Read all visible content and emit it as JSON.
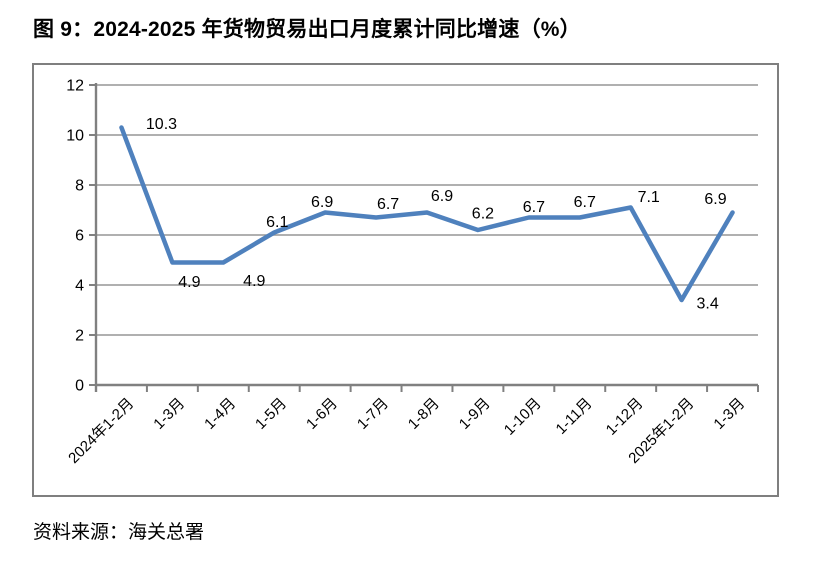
{
  "title": "图 9：2024-2025 年货物贸易出口月度累计同比增速（%）",
  "source": "资料来源：海关总署",
  "chart_data": {
    "type": "line",
    "title": "图 9：2024-2025 年货物贸易出口月度累计同比增速（%）",
    "categories": [
      "2024年1-2月",
      "1-3月",
      "1-4月",
      "1-5月",
      "1-6月",
      "1-7月",
      "1-8月",
      "1-9月",
      "1-10月",
      "1-11月",
      "1-12月",
      "2025年1-2月",
      "1-3月"
    ],
    "values": [
      10.3,
      4.9,
      4.9,
      6.1,
      6.9,
      6.7,
      6.9,
      6.2,
      6.7,
      6.7,
      7.1,
      3.4,
      6.9
    ],
    "xlabel": "",
    "ylabel": "",
    "ylim": [
      0,
      12
    ],
    "yticks": [
      0,
      2,
      4,
      6,
      8,
      10,
      12
    ],
    "grid": true,
    "legend": "none",
    "data_labels": true,
    "colors": {
      "line": "#4F81BD",
      "grid": "#969696",
      "axis": "#808080",
      "border": "#7f7f7f",
      "text": "#000000"
    }
  }
}
